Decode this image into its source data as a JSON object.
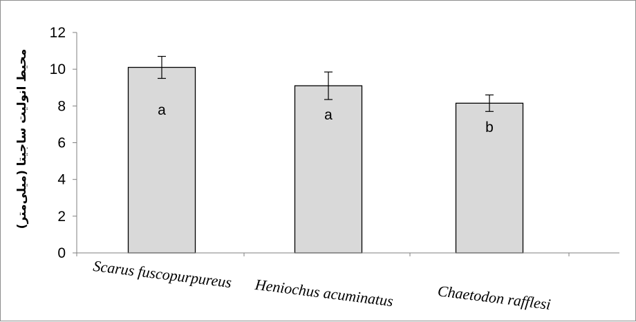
{
  "chart_data": {
    "type": "bar",
    "categories": [
      "Scarus fuscopurpureus",
      "Heniochus acuminatus",
      "Chaetodon rafflesi"
    ],
    "values": [
      10.1,
      9.1,
      8.15
    ],
    "errors": [
      0.6,
      0.75,
      0.45
    ],
    "bar_labels": [
      "a",
      "a",
      "b"
    ],
    "ylabel": "محیط انولیت ساجیتا (میلی‌متر)",
    "xlabel": "",
    "title": "",
    "ylim": [
      0,
      12
    ],
    "yticks": [
      0,
      2,
      4,
      6,
      8,
      10,
      12
    ],
    "ytick_labels": [
      "0",
      "2",
      "4",
      "6",
      "8",
      "10",
      "12"
    ],
    "grid": false,
    "legend": "none",
    "bar_fill": "#d9d9d9",
    "bar_stroke": "#000000"
  }
}
